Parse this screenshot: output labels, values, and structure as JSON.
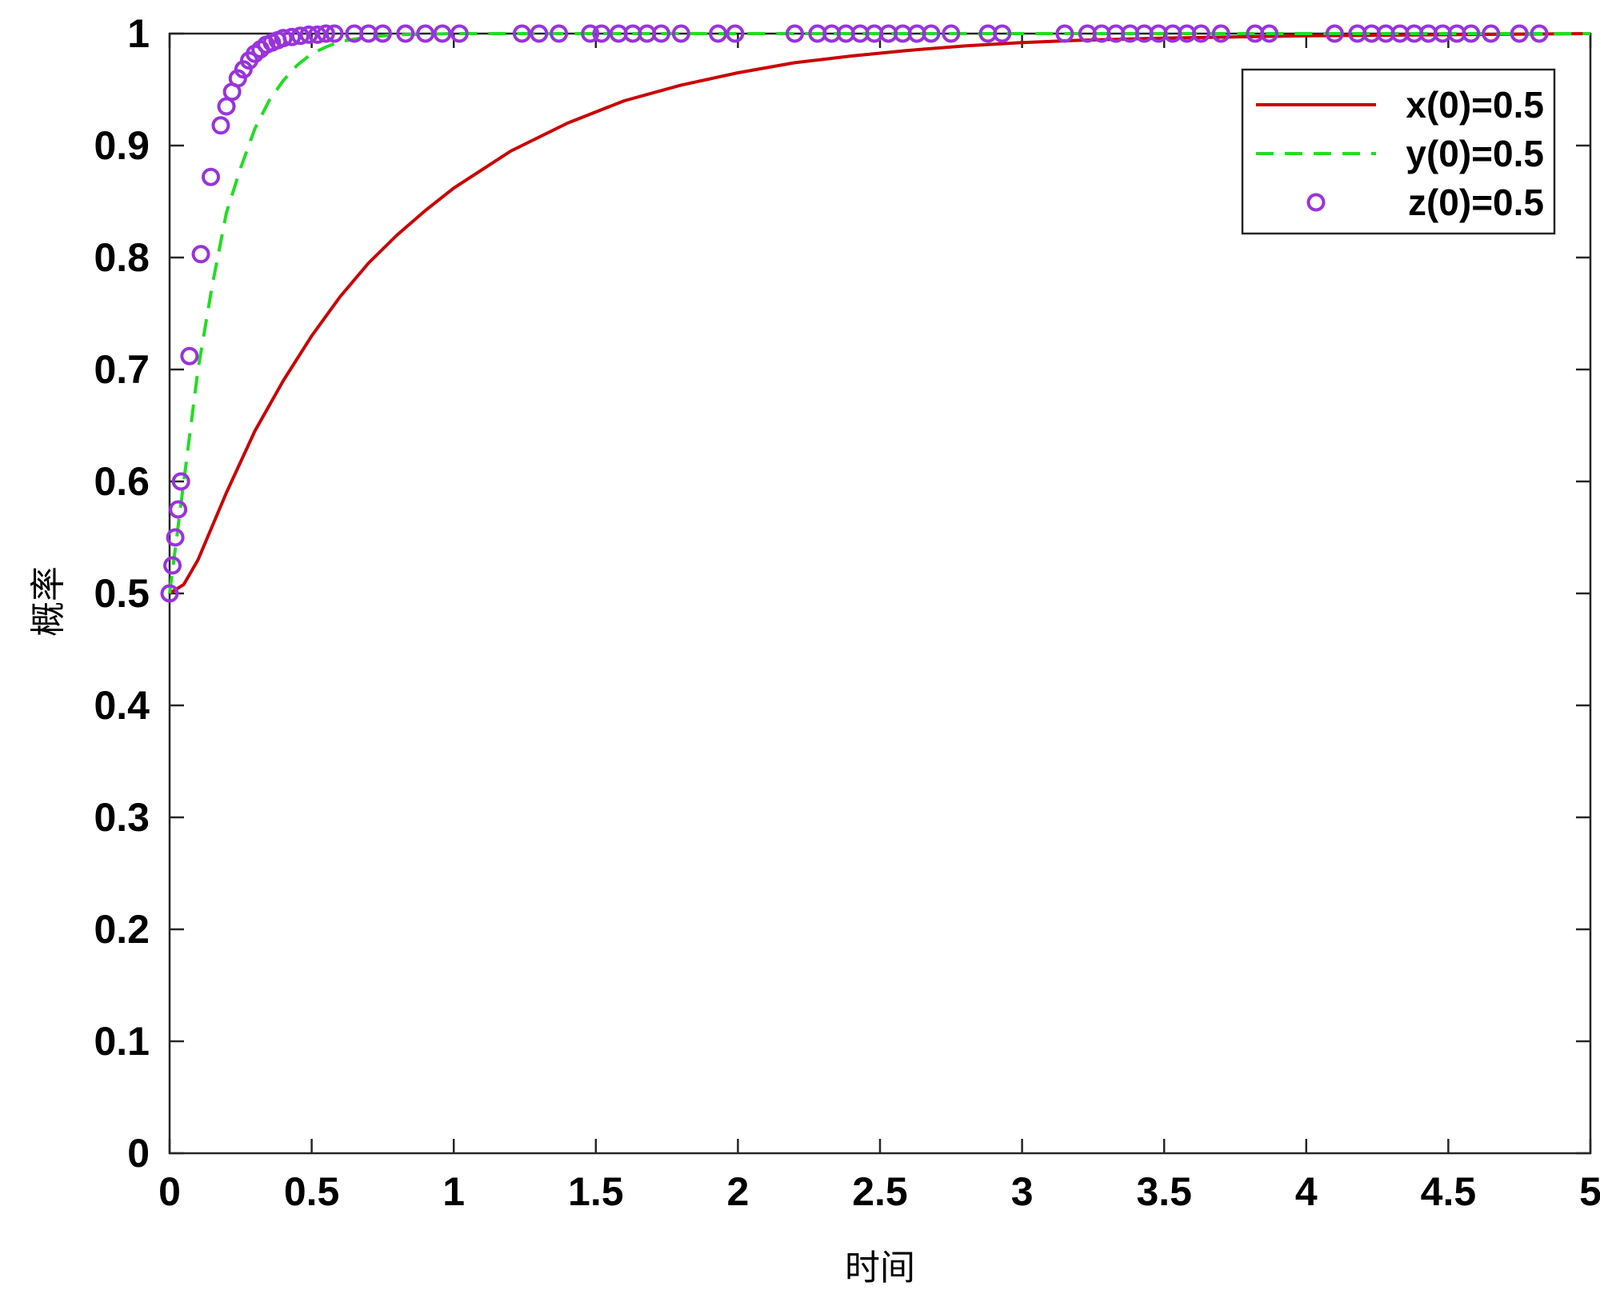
{
  "chart_data": {
    "type": "line",
    "xlabel": "时间",
    "ylabel": "概率",
    "xlim": [
      0,
      5
    ],
    "ylim": [
      0,
      1
    ],
    "x_ticks": [
      0,
      0.5,
      1,
      1.5,
      2,
      2.5,
      3,
      3.5,
      4,
      4.5,
      5
    ],
    "x_tick_labels": [
      "0",
      "0.5",
      "1",
      "1.5",
      "2",
      "2.5",
      "3",
      "3.5",
      "4",
      "4.5",
      "5"
    ],
    "y_ticks": [
      0,
      0.1,
      0.2,
      0.3,
      0.4,
      0.5,
      0.6,
      0.7,
      0.8,
      0.9,
      1
    ],
    "y_tick_labels": [
      "0",
      "0.1",
      "0.2",
      "0.3",
      "0.4",
      "0.5",
      "0.6",
      "0.7",
      "0.8",
      "0.9",
      "1"
    ],
    "grid": false,
    "legend_position": "top-right",
    "series": [
      {
        "name": "x(0)=0.5",
        "style": "solid-line",
        "color": "#cc0000",
        "x": [
          0,
          0.05,
          0.1,
          0.2,
          0.3,
          0.4,
          0.5,
          0.6,
          0.7,
          0.8,
          0.9,
          1.0,
          1.2,
          1.4,
          1.6,
          1.8,
          2.0,
          2.2,
          2.4,
          2.6,
          2.8,
          3.0,
          3.2,
          3.5,
          4.0,
          4.5,
          5.0
        ],
        "y": [
          0.5,
          0.508,
          0.53,
          0.59,
          0.645,
          0.69,
          0.73,
          0.765,
          0.795,
          0.82,
          0.842,
          0.862,
          0.895,
          0.92,
          0.94,
          0.954,
          0.965,
          0.974,
          0.98,
          0.985,
          0.989,
          0.992,
          0.994,
          0.996,
          0.998,
          0.999,
          1.0
        ]
      },
      {
        "name": "y(0)=0.5",
        "style": "dashed-line",
        "color": "#22dd22",
        "x": [
          0,
          0.05,
          0.1,
          0.15,
          0.2,
          0.25,
          0.3,
          0.35,
          0.4,
          0.45,
          0.5,
          0.55,
          0.6,
          0.7,
          0.8,
          1.0,
          1.5,
          2.0,
          3.0,
          4.0,
          5.0
        ],
        "y": [
          0.5,
          0.6,
          0.7,
          0.775,
          0.84,
          0.88,
          0.915,
          0.94,
          0.958,
          0.972,
          0.982,
          0.988,
          0.993,
          0.997,
          0.999,
          1.0,
          1.0,
          1.0,
          1.0,
          1.0,
          1.0
        ]
      },
      {
        "name": "z(0)=0.5",
        "style": "circle-markers",
        "color": "#9933dd",
        "x": [
          0,
          0.01,
          0.02,
          0.03,
          0.04,
          0.07,
          0.11,
          0.145,
          0.18,
          0.2,
          0.22,
          0.24,
          0.26,
          0.28,
          0.3,
          0.32,
          0.34,
          0.36,
          0.38,
          0.4,
          0.43,
          0.46,
          0.49,
          0.52,
          0.55,
          0.58,
          0.65,
          0.7,
          0.75,
          0.83,
          0.9,
          0.96,
          1.02,
          1.24,
          1.3,
          1.37,
          1.48,
          1.52,
          1.58,
          1.63,
          1.68,
          1.73,
          1.8,
          1.93,
          1.99,
          2.2,
          2.28,
          2.33,
          2.38,
          2.43,
          2.48,
          2.53,
          2.58,
          2.63,
          2.68,
          2.75,
          2.88,
          2.93,
          3.15,
          3.23,
          3.28,
          3.33,
          3.38,
          3.43,
          3.48,
          3.53,
          3.58,
          3.63,
          3.7,
          3.82,
          3.87,
          4.1,
          4.18,
          4.23,
          4.28,
          4.33,
          4.38,
          4.43,
          4.48,
          4.53,
          4.58,
          4.65,
          4.75,
          4.82
        ],
        "y": [
          0.5,
          0.525,
          0.55,
          0.575,
          0.6,
          0.712,
          0.803,
          0.872,
          0.918,
          0.935,
          0.948,
          0.96,
          0.968,
          0.976,
          0.982,
          0.986,
          0.99,
          0.992,
          0.994,
          0.996,
          0.997,
          0.998,
          0.999,
          0.999,
          1.0,
          1.0,
          1.0,
          1.0,
          1.0,
          1.0,
          1.0,
          1.0,
          1.0,
          1.0,
          1.0,
          1.0,
          1.0,
          1.0,
          1.0,
          1.0,
          1.0,
          1.0,
          1.0,
          1.0,
          1.0,
          1.0,
          1.0,
          1.0,
          1.0,
          1.0,
          1.0,
          1.0,
          1.0,
          1.0,
          1.0,
          1.0,
          1.0,
          1.0,
          1.0,
          1.0,
          1.0,
          1.0,
          1.0,
          1.0,
          1.0,
          1.0,
          1.0,
          1.0,
          1.0,
          1.0,
          1.0,
          1.0,
          1.0,
          1.0,
          1.0,
          1.0,
          1.0,
          1.0,
          1.0,
          1.0,
          1.0,
          1.0,
          1.0,
          1.0
        ]
      }
    ]
  }
}
